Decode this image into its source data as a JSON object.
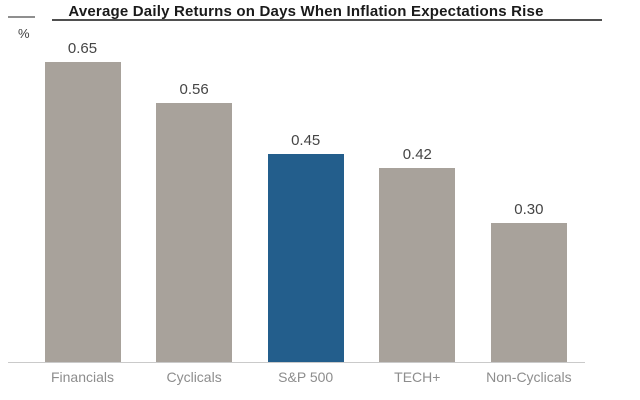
{
  "chart_data": {
    "type": "bar",
    "title": "Average Daily Returns on Days When Inflation Expectations Rise",
    "unit_label": "%",
    "categories": [
      "Financials",
      "Cyclicals",
      "S&P 500",
      "TECH+",
      "Non-Cyclicals"
    ],
    "values": [
      0.65,
      0.56,
      0.45,
      0.42,
      0.3
    ],
    "value_labels": [
      "0.65",
      "0.56",
      "0.45",
      "0.42",
      "0.30"
    ],
    "highlighted_category": "S&P 500",
    "xlabel": "",
    "ylabel": "%",
    "ylim": [
      0,
      0.78
    ],
    "grid": false,
    "legend": "none"
  },
  "colors": {
    "bar_default": "#a8a29b",
    "bar_highlight": "#235e8c",
    "axis_line": "#cacaca",
    "title_color": "#1a1a1a",
    "value_label_color": "#454545",
    "category_label_color": "#8d8d8d"
  }
}
